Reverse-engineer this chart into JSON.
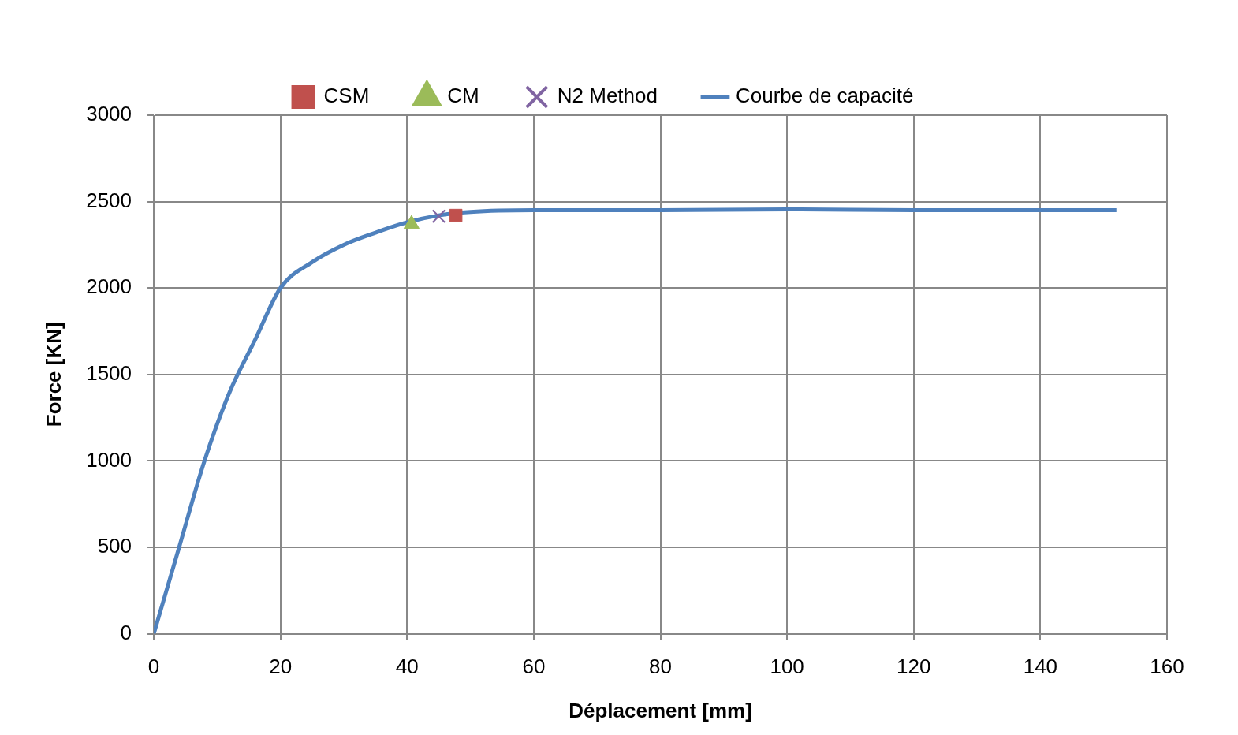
{
  "chart_data": {
    "type": "line",
    "xlabel": "Déplacement [mm]",
    "ylabel": "Force [KN]",
    "xlim": [
      0,
      160
    ],
    "xticks": [
      0,
      20,
      40,
      60,
      80,
      100,
      120,
      140,
      160
    ],
    "ylim": [
      0,
      3000
    ],
    "yticks": [
      0,
      500,
      1000,
      1500,
      2000,
      2500,
      3000
    ],
    "grid": true,
    "legend": "top",
    "series": [
      {
        "name": "CSM",
        "type": "scatter",
        "marker": "square",
        "color": "#c0504d",
        "x": [
          47.7
        ],
        "values": [
          2420
        ]
      },
      {
        "name": "CM",
        "type": "scatter",
        "marker": "triangle",
        "color": "#9bbb59",
        "x": [
          40.7
        ],
        "values": [
          2370
        ]
      },
      {
        "name": "N2 Method",
        "type": "scatter",
        "marker": "cross",
        "color": "#8064a2",
        "x": [
          45
        ],
        "values": [
          2415
        ]
      },
      {
        "name": "Courbe de capacité",
        "type": "line",
        "marker": "none",
        "color": "#4f81bd",
        "x": [
          0,
          4,
          8,
          12,
          16,
          20,
          25,
          30,
          35,
          40,
          45,
          50,
          60,
          80,
          100,
          120,
          140,
          152
        ],
        "values": [
          0,
          500,
          1000,
          1400,
          1700,
          2000,
          2150,
          2250,
          2320,
          2380,
          2420,
          2440,
          2450,
          2450,
          2455,
          2450,
          2450,
          2450
        ]
      }
    ]
  }
}
